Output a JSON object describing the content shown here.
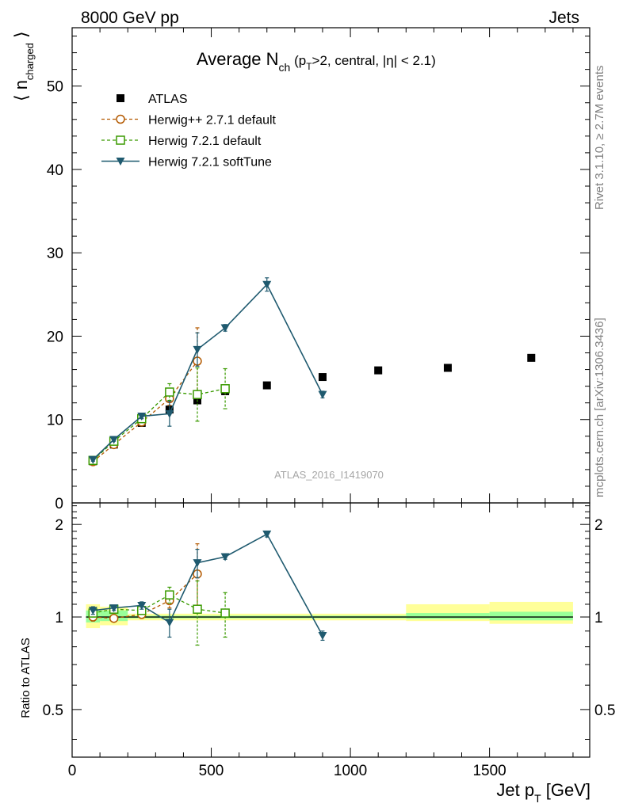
{
  "header": {
    "left": "8000 GeV pp",
    "right": "Jets"
  },
  "right_labels": {
    "rivet": "Rivet 3.1.10, ≥ 2.7M events",
    "mcplots": "mcplots.cern.ch [arXiv:1306.3436]"
  },
  "watermark": "ATLAS_2016_I1419070",
  "chart_data": [
    {
      "type": "line",
      "panel": "main",
      "title": "Average N_ch (p_T>2, central, |η| < 2.1)",
      "ylabel": "⟨ n_charged ⟩",
      "xlim": [
        0,
        1860
      ],
      "ylim": [
        0,
        57
      ],
      "xticks": [
        0,
        500,
        1000,
        1500
      ],
      "yticks": [
        0,
        10,
        20,
        30,
        40,
        50
      ],
      "ytick_labels": [
        "0",
        "10",
        "20",
        "30",
        "40",
        "50"
      ],
      "legend": {
        "position": "top-left"
      },
      "series": [
        {
          "name": "ATLAS",
          "style": "points",
          "marker": "filled-square",
          "color": "#000000",
          "points": [
            {
              "x": 75,
              "y": 5.0
            },
            {
              "x": 150,
              "y": 7.0
            },
            {
              "x": 250,
              "y": 9.6
            },
            {
              "x": 350,
              "y": 11.2
            },
            {
              "x": 450,
              "y": 12.3
            },
            {
              "x": 550,
              "y": 13.4
            },
            {
              "x": 700,
              "y": 14.1
            },
            {
              "x": 900,
              "y": 15.1
            },
            {
              "x": 1100,
              "y": 15.9
            },
            {
              "x": 1350,
              "y": 16.2
            },
            {
              "x": 1650,
              "y": 17.4
            }
          ]
        },
        {
          "name": "Herwig++ 2.7.1 default",
          "style": "dashed",
          "marker": "open-circle",
          "color": "#b35900",
          "points": [
            {
              "x": 75,
              "y": 4.95,
              "err": 0.2
            },
            {
              "x": 150,
              "y": 7.0,
              "err": 0.2
            },
            {
              "x": 250,
              "y": 9.7,
              "err": 0.3
            },
            {
              "x": 350,
              "y": 12.5,
              "err": 0.8
            },
            {
              "x": 450,
              "y": 17.0,
              "err": 4.0
            }
          ]
        },
        {
          "name": "Herwig 7.2.1 default",
          "style": "dashed",
          "marker": "open-square",
          "color": "#3a9a00",
          "points": [
            {
              "x": 75,
              "y": 5.1,
              "err": 0.2
            },
            {
              "x": 150,
              "y": 7.4,
              "err": 0.2
            },
            {
              "x": 250,
              "y": 10.1,
              "err": 0.3
            },
            {
              "x": 350,
              "y": 13.3,
              "err": 1.0
            },
            {
              "x": 450,
              "y": 13.0,
              "err": 3.2
            },
            {
              "x": 550,
              "y": 13.7,
              "err": 2.4
            }
          ]
        },
        {
          "name": "Herwig 7.2.1 softTune",
          "style": "solid",
          "marker": "filled-triangle-down",
          "color": "#1f5a6f",
          "points": [
            {
              "x": 75,
              "y": 5.2,
              "err": 0.2
            },
            {
              "x": 150,
              "y": 7.6,
              "err": 0.2
            },
            {
              "x": 250,
              "y": 10.4,
              "err": 0.3
            },
            {
              "x": 350,
              "y": 10.7,
              "err": 1.5
            },
            {
              "x": 450,
              "y": 18.4,
              "err": 2.0
            },
            {
              "x": 550,
              "y": 21.0,
              "err": 0.4
            },
            {
              "x": 700,
              "y": 26.2,
              "err": 0.8
            },
            {
              "x": 900,
              "y": 13.0,
              "err": 0.4
            }
          ]
        }
      ]
    },
    {
      "type": "line",
      "panel": "ratio",
      "ylabel": "Ratio to ATLAS",
      "xlabel": "Jet p_T [GeV]",
      "xlim": [
        0,
        1860
      ],
      "ylim": [
        0.35,
        2.35
      ],
      "xticks": [
        0,
        500,
        1000,
        1500
      ],
      "xtick_labels": [
        "0",
        "500",
        "1000",
        "1500"
      ],
      "yticks": [
        0.5,
        1,
        2
      ],
      "ytick_labels": [
        "0.5",
        "1",
        "2"
      ],
      "reference_line": 1,
      "bands": [
        {
          "x0": 50,
          "x1": 100,
          "inner": [
            0.96,
            1.05
          ],
          "outer": [
            0.92,
            1.1
          ]
        },
        {
          "x0": 100,
          "x1": 200,
          "inner": [
            0.97,
            1.05
          ],
          "outer": [
            0.94,
            1.08
          ]
        },
        {
          "x0": 200,
          "x1": 1200,
          "inner": [
            0.99,
            1.01
          ],
          "outer": [
            0.975,
            1.025
          ]
        },
        {
          "x0": 1200,
          "x1": 1500,
          "inner": [
            0.985,
            1.03
          ],
          "outer": [
            0.97,
            1.1
          ]
        },
        {
          "x0": 1500,
          "x1": 1800,
          "inner": [
            0.975,
            1.04
          ],
          "outer": [
            0.95,
            1.12
          ]
        }
      ],
      "band_colors": {
        "inner": "#99ff99",
        "outer": "#ffff99"
      },
      "series": [
        {
          "name": "Herwig++ 2.7.1 default",
          "style": "dashed",
          "marker": "open-circle",
          "color": "#b35900",
          "points": [
            {
              "x": 75,
              "y": 1.0,
              "err": 0.03
            },
            {
              "x": 150,
              "y": 0.99,
              "err": 0.02
            },
            {
              "x": 250,
              "y": 1.02,
              "err": 0.03
            },
            {
              "x": 350,
              "y": 1.13,
              "err": 0.06
            },
            {
              "x": 450,
              "y": 1.38,
              "err": 0.35
            }
          ]
        },
        {
          "name": "Herwig 7.2.1 default",
          "style": "dashed",
          "marker": "open-square",
          "color": "#3a9a00",
          "points": [
            {
              "x": 75,
              "y": 1.03,
              "err": 0.03
            },
            {
              "x": 150,
              "y": 1.06,
              "err": 0.02
            },
            {
              "x": 250,
              "y": 1.05,
              "err": 0.03
            },
            {
              "x": 350,
              "y": 1.18,
              "err": 0.07
            },
            {
              "x": 450,
              "y": 1.06,
              "err": 0.25
            },
            {
              "x": 550,
              "y": 1.03,
              "err": 0.17
            }
          ]
        },
        {
          "name": "Herwig 7.2.1 softTune",
          "style": "solid",
          "marker": "filled-triangle-down",
          "color": "#1f5a6f",
          "points": [
            {
              "x": 75,
              "y": 1.05,
              "err": 0.03
            },
            {
              "x": 150,
              "y": 1.07,
              "err": 0.02
            },
            {
              "x": 250,
              "y": 1.09,
              "err": 0.03
            },
            {
              "x": 350,
              "y": 0.96,
              "err": 0.1
            },
            {
              "x": 450,
              "y": 1.5,
              "err": 0.16
            },
            {
              "x": 550,
              "y": 1.57,
              "err": 0.03
            },
            {
              "x": 700,
              "y": 1.86,
              "err": 0.04
            },
            {
              "x": 900,
              "y": 0.87,
              "err": 0.03
            }
          ]
        }
      ]
    }
  ]
}
